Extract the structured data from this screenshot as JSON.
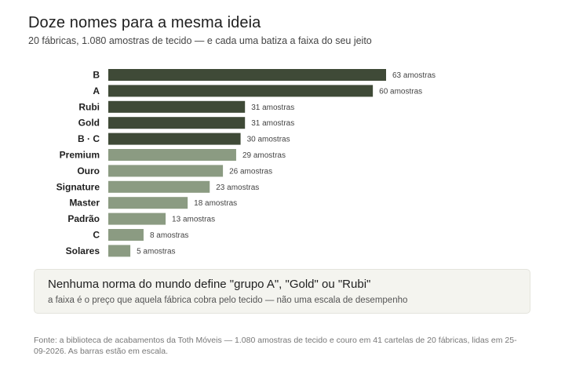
{
  "header": {
    "title": "Doze nomes para a mesma ideia",
    "subtitle": "20 fábricas, 1.080 amostras de tecido — e cada uma batiza a faixa do seu jeito"
  },
  "chart_data": {
    "type": "bar",
    "orientation": "horizontal",
    "categories": [
      "B",
      "A",
      "Rubi",
      "Gold",
      "B · C",
      "Premium",
      "Ouro",
      "Signature",
      "Master",
      "Padrão",
      "C",
      "Solares"
    ],
    "values": [
      63,
      60,
      31,
      31,
      30,
      29,
      26,
      23,
      18,
      13,
      8,
      5
    ],
    "value_suffix": " amostras",
    "colors": {
      "dark": "#3f4a37",
      "light": "#8b9b82"
    },
    "color_groups": [
      "dark",
      "dark",
      "dark",
      "dark",
      "dark",
      "light",
      "light",
      "light",
      "light",
      "light",
      "light",
      "light"
    ],
    "grid": false,
    "legend": "none"
  },
  "callout": {
    "title": "Nenhuma norma do mundo define \"grupo A\", \"Gold\" ou \"Rubi\"",
    "body": "a faixa é o preço que aquela fábrica cobra pelo tecido — não uma escala de desempenho"
  },
  "footer": {
    "source": "Fonte: a biblioteca de acabamentos da Toth Móveis — 1.080 amostras de tecido e couro em 41 cartelas de 20 fábricas, lidas em 25-09-2026. As barras estão em escala."
  }
}
